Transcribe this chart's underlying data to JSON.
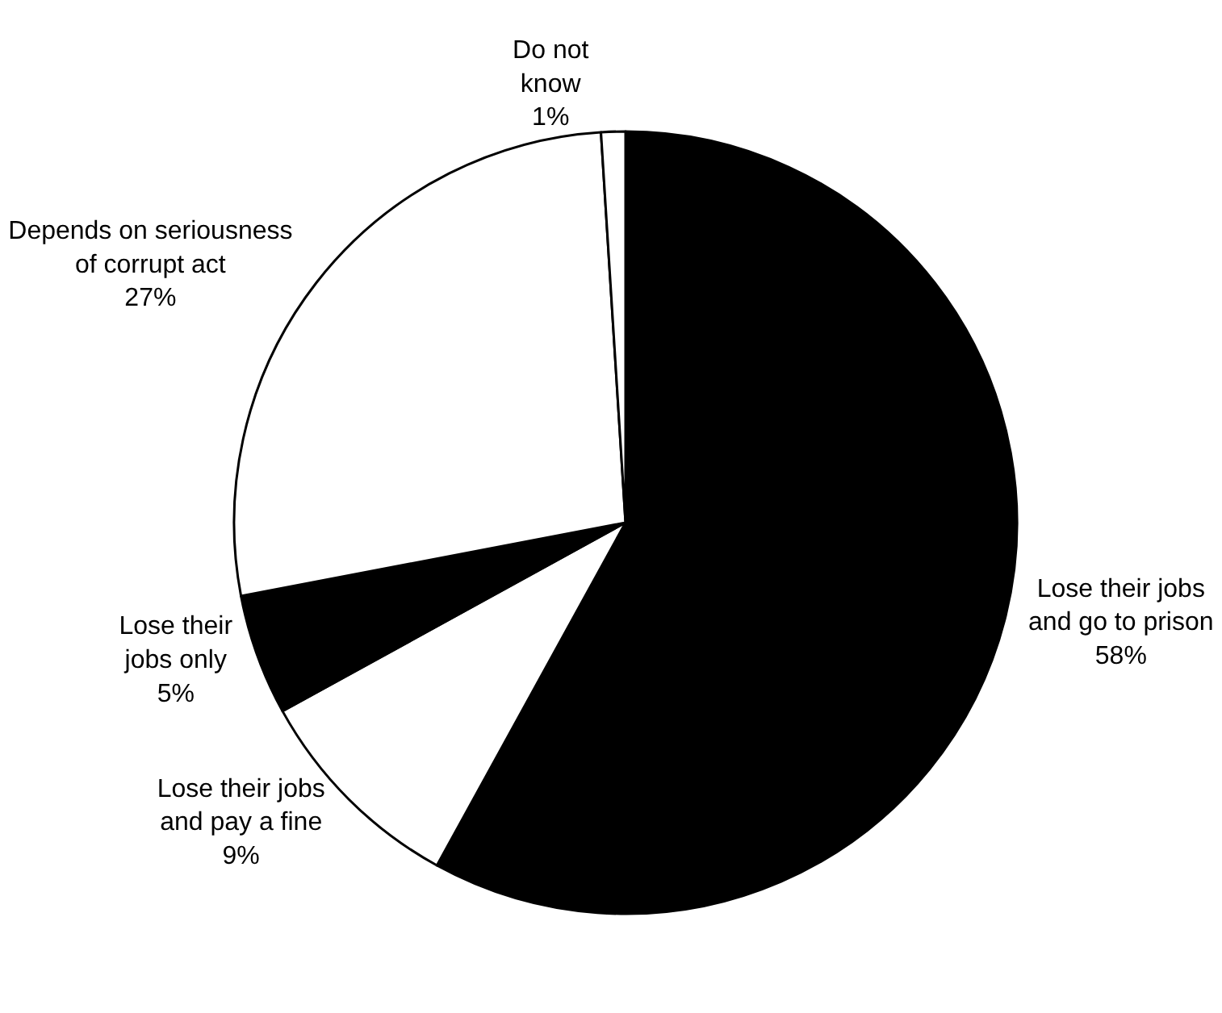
{
  "chart_data": {
    "type": "pie",
    "categories": [
      "Lose their jobs\nand go to prison",
      "Lose their jobs\nand pay a fine",
      "Lose their\njobs only",
      "Depends on seriousness\nof corrupt act",
      "Do not\nknow"
    ],
    "values": [
      58,
      9,
      5,
      27,
      1
    ],
    "colors": [
      "#000000",
      "#ffffff",
      "#000000",
      "#ffffff",
      "#ffffff"
    ],
    "value_labels": [
      "58%",
      "9%",
      "5%",
      "27%",
      "1%"
    ],
    "legend": false
  }
}
